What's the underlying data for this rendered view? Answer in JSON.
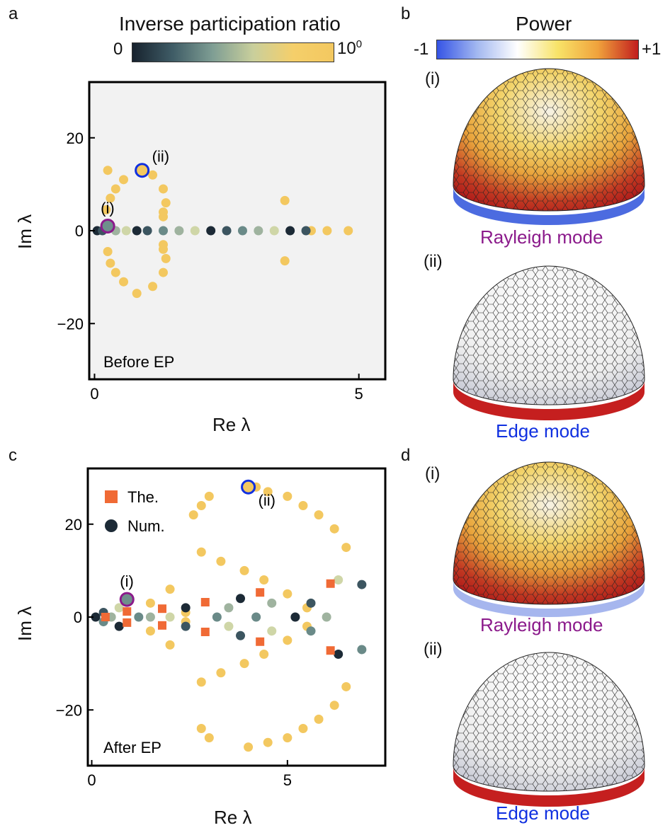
{
  "panels": {
    "a": {
      "letter": "a",
      "colorbar_title": "Inverse participation ratio",
      "cb_min": "0",
      "cb_max_base": "10",
      "cb_max_exp": "0",
      "caption": "Before EP"
    },
    "b": {
      "letter": "b",
      "colorbar_title": "Power",
      "cb_min": "-1",
      "cb_max": "+1",
      "sub_i": "(i)",
      "sub_ii": "(ii)",
      "mode_i": "Rayleigh mode",
      "mode_ii": "Edge mode"
    },
    "c": {
      "letter": "c",
      "caption": "After EP",
      "legend_the": "The.",
      "legend_num": "Num."
    },
    "d": {
      "letter": "d",
      "sub_i": "(i)",
      "sub_ii": "(ii)",
      "mode_i": "Rayleigh mode",
      "mode_ii": "Edge mode"
    }
  },
  "colors": {
    "rayleigh": "#8b1a8b",
    "edge": "#1030e0",
    "ipr_high": "#f3c860",
    "ipr_low": "#1c2a36",
    "theory": "#f06a35"
  },
  "chart_data": [
    {
      "type": "scatter",
      "panel": "a",
      "title": "Before EP",
      "xlabel": "Re λ",
      "ylabel": "Im λ",
      "xlim": [
        -0.1,
        5.5
      ],
      "ylim": [
        -32,
        32
      ],
      "xticks": [
        0,
        5
      ],
      "yticks": [
        -20,
        0,
        20
      ],
      "annotations": [
        {
          "text": "(i)",
          "x": 0.25,
          "y": 1.0
        },
        {
          "text": "(ii)",
          "x": 0.9,
          "y": 13
        }
      ],
      "points_high_ipr": [
        [
          0.25,
          13
        ],
        [
          0.55,
          11
        ],
        [
          0.4,
          9
        ],
        [
          0.3,
          7
        ],
        [
          0.22,
          4.5
        ],
        [
          0.25,
          -4.5
        ],
        [
          0.3,
          -7
        ],
        [
          0.4,
          -9
        ],
        [
          0.55,
          -11
        ],
        [
          0.8,
          -13.5
        ],
        [
          1.1,
          -12
        ],
        [
          1.3,
          -9
        ],
        [
          1.35,
          -6
        ],
        [
          1.3,
          -3
        ],
        [
          1.3,
          3
        ],
        [
          1.35,
          6
        ],
        [
          1.3,
          9
        ],
        [
          1.1,
          12
        ],
        [
          1.3,
          4
        ],
        [
          1.3,
          -4
        ],
        [
          3.6,
          6.5
        ],
        [
          3.6,
          -6.5
        ],
        [
          4.4,
          0
        ],
        [
          4.8,
          0
        ],
        [
          4.1,
          0
        ],
        [
          0.9,
          13
        ]
      ],
      "points_low_ipr": [
        [
          0.05,
          0
        ],
        [
          0.15,
          0
        ],
        [
          0.25,
          1.0
        ],
        [
          0.4,
          0
        ],
        [
          0.6,
          0
        ],
        [
          0.8,
          0
        ],
        [
          1.0,
          0
        ],
        [
          1.3,
          0
        ],
        [
          1.6,
          0
        ],
        [
          1.9,
          0
        ],
        [
          2.2,
          0
        ],
        [
          2.5,
          0
        ],
        [
          2.8,
          0
        ],
        [
          3.1,
          0
        ],
        [
          3.4,
          0
        ],
        [
          3.7,
          0
        ],
        [
          4.0,
          0
        ]
      ]
    },
    {
      "type": "scatter",
      "panel": "c",
      "title": "After EP",
      "xlabel": "Re λ",
      "ylabel": "Im λ",
      "xlim": [
        -0.1,
        7.5
      ],
      "ylim": [
        -32,
        32
      ],
      "xticks": [
        0,
        5
      ],
      "yticks": [
        -20,
        0,
        20
      ],
      "legend": [
        "The.",
        "Num."
      ],
      "annotations": [
        {
          "text": "(i)",
          "x": 0.9,
          "y": 3.8
        },
        {
          "text": "(ii)",
          "x": 4.0,
          "y": 28
        }
      ],
      "theory_points": [
        [
          0.35,
          0
        ],
        [
          0.9,
          1.2
        ],
        [
          0.9,
          -1.2
        ],
        [
          1.8,
          1.8
        ],
        [
          1.8,
          -1.8
        ],
        [
          2.9,
          3.2
        ],
        [
          2.9,
          -3.2
        ],
        [
          4.3,
          5.3
        ],
        [
          4.3,
          -5.3
        ],
        [
          6.1,
          7.2
        ],
        [
          6.1,
          -7.2
        ]
      ],
      "points_high_ipr": [
        [
          4.0,
          28
        ],
        [
          3.0,
          26
        ],
        [
          2.8,
          24
        ],
        [
          4.5,
          27
        ],
        [
          5.0,
          26
        ],
        [
          5.4,
          24
        ],
        [
          5.8,
          22
        ],
        [
          6.2,
          19
        ],
        [
          6.5,
          15
        ],
        [
          4.2,
          28
        ],
        [
          2.6,
          22
        ],
        [
          2.8,
          14
        ],
        [
          3.3,
          12
        ],
        [
          3.9,
          10
        ],
        [
          4.4,
          8
        ],
        [
          5.0,
          5
        ],
        [
          5.5,
          2
        ],
        [
          2.8,
          -14
        ],
        [
          3.3,
          -12
        ],
        [
          3.9,
          -10
        ],
        [
          4.4,
          -8
        ],
        [
          5.0,
          -5
        ],
        [
          5.5,
          -2
        ],
        [
          3.0,
          -26
        ],
        [
          2.8,
          -24
        ],
        [
          4.5,
          -27
        ],
        [
          5.0,
          -26
        ],
        [
          5.4,
          -24
        ],
        [
          5.8,
          -22
        ],
        [
          6.2,
          -19
        ],
        [
          6.5,
          -15
        ],
        [
          4.0,
          -28
        ],
        [
          2.0,
          6
        ],
        [
          2.0,
          -6
        ],
        [
          1.5,
          3
        ],
        [
          1.5,
          -3
        ],
        [
          2.4,
          1
        ],
        [
          2.4,
          -1
        ]
      ],
      "points_low_ipr": [
        [
          0.1,
          0
        ],
        [
          0.3,
          1
        ],
        [
          0.3,
          -1
        ],
        [
          0.5,
          0
        ],
        [
          0.7,
          2
        ],
        [
          0.7,
          -2
        ],
        [
          0.9,
          3.8
        ],
        [
          1.2,
          0
        ],
        [
          1.5,
          0
        ],
        [
          2.0,
          0
        ],
        [
          2.4,
          2
        ],
        [
          2.4,
          -2
        ],
        [
          3.2,
          0
        ],
        [
          3.5,
          2
        ],
        [
          3.5,
          -2
        ],
        [
          3.8,
          4
        ],
        [
          3.8,
          -4
        ],
        [
          4.2,
          0
        ],
        [
          4.6,
          3
        ],
        [
          4.6,
          -3
        ],
        [
          5.2,
          0
        ],
        [
          5.6,
          3
        ],
        [
          5.6,
          -3
        ],
        [
          6.0,
          0
        ],
        [
          6.3,
          8
        ],
        [
          6.3,
          -8
        ],
        [
          6.9,
          7
        ],
        [
          6.9,
          -7
        ]
      ]
    }
  ]
}
